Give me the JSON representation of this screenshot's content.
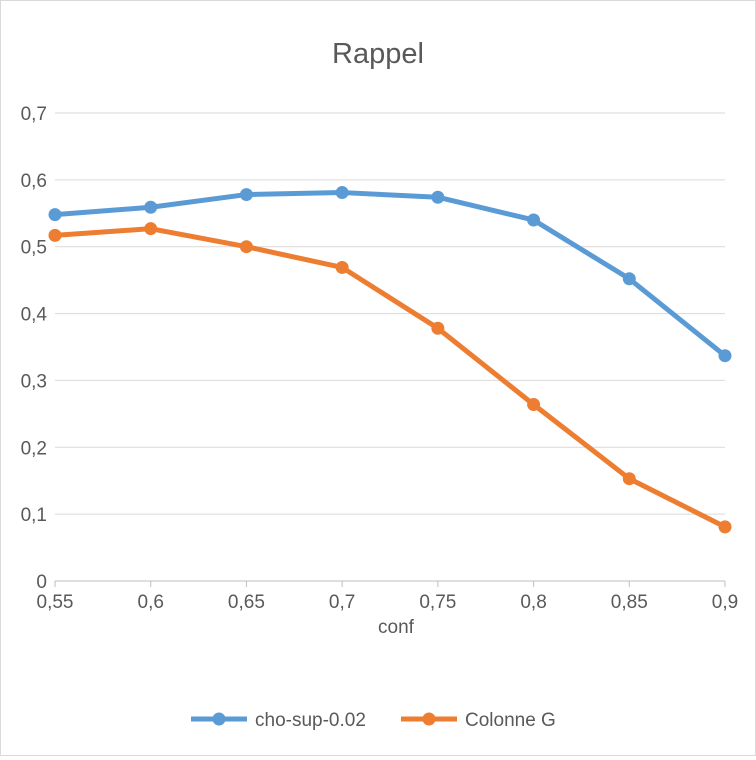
{
  "chart_data": {
    "type": "line",
    "title": "Rappel",
    "xlabel": "conf",
    "ylabel": "",
    "x": [
      0.55,
      0.6,
      0.65,
      0.7,
      0.75,
      0.8,
      0.85,
      0.9
    ],
    "x_tick_labels": [
      "0,55",
      "0,6",
      "0,65",
      "0,7",
      "0,75",
      "0,8",
      "0,85",
      "0,9"
    ],
    "ylim": [
      0,
      0.7
    ],
    "y_ticks": [
      0,
      0.1,
      0.2,
      0.3,
      0.4,
      0.5,
      0.6,
      0.7
    ],
    "y_tick_labels": [
      "0",
      "0,1",
      "0,2",
      "0,3",
      "0,4",
      "0,5",
      "0,6",
      "0,7"
    ],
    "grid": true,
    "legend_position": "bottom",
    "series": [
      {
        "name": "cho-sup-0.02",
        "color": "#5b9bd5",
        "values": [
          0.548,
          0.559,
          0.578,
          0.581,
          0.574,
          0.54,
          0.452,
          0.337
        ]
      },
      {
        "name": "Colonne G",
        "color": "#ed7d31",
        "values": [
          0.517,
          0.527,
          0.5,
          0.469,
          0.378,
          0.264,
          0.153,
          0.081
        ]
      }
    ]
  }
}
